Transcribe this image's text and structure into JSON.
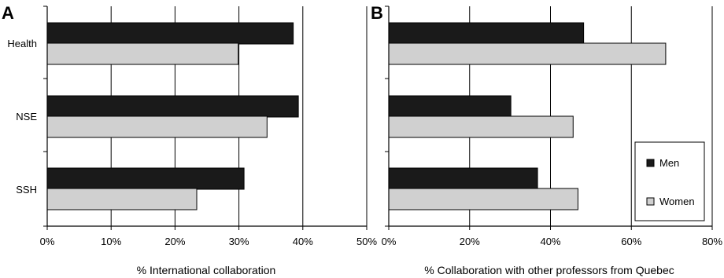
{
  "colors": {
    "men": "#1a1a1a",
    "women": "#d0d0d0",
    "grid": "#000000",
    "axis": "#000000"
  },
  "chart_data": [
    {
      "type": "bar",
      "orientation": "horizontal",
      "panel_label": "A",
      "categories": [
        "Health",
        "NSE",
        "SSH"
      ],
      "series": [
        {
          "name": "Men",
          "values": [
            38.5,
            39.3,
            30.8
          ]
        },
        {
          "name": "Women",
          "values": [
            29.9,
            34.4,
            23.4
          ]
        }
      ],
      "xlabel": "% International collaboration",
      "ylabel": "",
      "xlim": [
        0,
        50
      ],
      "xticks": [
        "0%",
        "10%",
        "20%",
        "30%",
        "40%",
        "50%"
      ],
      "grid": true
    },
    {
      "type": "bar",
      "orientation": "horizontal",
      "panel_label": "B",
      "categories": [
        "Health",
        "NSE",
        "SSH"
      ],
      "series": [
        {
          "name": "Men",
          "values": [
            48.2,
            30.2,
            36.8
          ]
        },
        {
          "name": "Women",
          "values": [
            68.5,
            45.6,
            46.8
          ]
        }
      ],
      "xlabel": "% Collaboration with other professors from Quebec",
      "ylabel": "",
      "xlim": [
        0,
        80
      ],
      "xticks": [
        "0%",
        "20%",
        "40%",
        "60%",
        "80%"
      ],
      "grid": true,
      "legend": {
        "position": "right",
        "entries": [
          "Men",
          "Women"
        ]
      }
    }
  ]
}
